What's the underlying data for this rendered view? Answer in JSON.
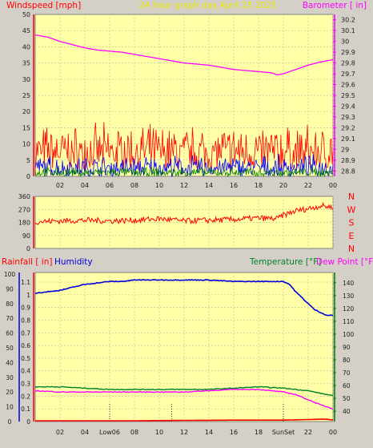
{
  "colors": {
    "background": "#d4d0c8",
    "plot_bg": "#ffffa8",
    "grid": "#ccc4a0",
    "axis": "#808080",
    "wind_speed": "#ff0000",
    "wind_gust": "#0000ff",
    "wind_avg": "#008000",
    "barometer": "#ff00ff",
    "direction": "#ff0000",
    "humidity": "#0000dd",
    "temperature": "#00802a",
    "dew_point": "#ff00ff",
    "rainfall": "#ff0000",
    "title": "#e8e800",
    "low_marker": "#404040"
  },
  "header": {
    "title": "24 hour graph day   April 25 2025"
  },
  "chart_data": [
    {
      "type": "line",
      "name": "wind-barometer",
      "left_axis_label": "Windspeed [mph]",
      "right_axis_label": "Barometer [ in]",
      "x_ticks": [
        "02",
        "04",
        "06",
        "08",
        "10",
        "12",
        "14",
        "16",
        "18",
        "20",
        "22",
        "00"
      ],
      "left_ticks": [
        "0",
        "5",
        "10",
        "15",
        "20",
        "25",
        "30",
        "35",
        "40",
        "45",
        "50"
      ],
      "left_ylim": [
        0,
        50
      ],
      "right_ticks": [
        "28.8",
        "28.9",
        "29",
        "29.1",
        "29.2",
        "29.3",
        "29.4",
        "29.5",
        "29.6",
        "29.7",
        "29.8",
        "29.9",
        "30",
        "30.1",
        "30.2"
      ],
      "right_ylim": [
        28.75,
        30.25
      ],
      "barometer": {
        "hours": [
          0,
          1,
          2,
          3,
          4,
          5,
          6,
          7,
          8,
          9,
          10,
          11,
          12,
          13,
          14,
          15,
          16,
          17,
          18,
          19,
          19.5,
          20,
          21,
          22,
          23,
          24
        ],
        "values": [
          30.06,
          30.04,
          30.0,
          29.97,
          29.94,
          29.92,
          29.91,
          29.9,
          29.88,
          29.86,
          29.84,
          29.82,
          29.8,
          29.79,
          29.78,
          29.76,
          29.74,
          29.73,
          29.72,
          29.71,
          29.69,
          29.7,
          29.74,
          29.78,
          29.81,
          29.83
        ]
      },
      "wind_speed_range": [
        2,
        17
      ],
      "wind_gust_range": [
        0,
        7
      ],
      "wind_avg_range": [
        0,
        3
      ]
    },
    {
      "type": "line",
      "name": "wind-direction",
      "left_ticks": [
        "0",
        "90",
        "180",
        "270",
        "360"
      ],
      "ylim": [
        0,
        360
      ],
      "compass_labels": [
        "N",
        "W",
        "S",
        "E",
        "N"
      ],
      "x_ticks": [
        "02",
        "04",
        "06",
        "08",
        "10",
        "12",
        "14",
        "16",
        "18",
        "20",
        "22",
        "00"
      ],
      "direction": {
        "hours": [
          0,
          2,
          4,
          6,
          8,
          10,
          12,
          14,
          16,
          18,
          19.5,
          20,
          21,
          22,
          23,
          24
        ],
        "values": [
          185,
          190,
          195,
          190,
          195,
          205,
          190,
          195,
          200,
          210,
          205,
          230,
          260,
          275,
          295,
          285
        ]
      }
    },
    {
      "type": "line",
      "name": "humidity-temperature",
      "labels": {
        "rainfall": "Rainfall [ in]",
        "humidity": "Humidity",
        "temperature": "Temperature [°F]",
        "dew_point": "Dew Point [°F]"
      },
      "left_ticks_humidity": [
        "0",
        "10",
        "20",
        "30",
        "40",
        "50",
        "60",
        "70",
        "80",
        "90",
        "100"
      ],
      "left_ticks_rain": [
        "0",
        "0.1",
        "0.2",
        "0.3",
        "0.4",
        "0.5",
        "0.6",
        "0.7",
        "0.8",
        "0.9",
        "1",
        "1.1"
      ],
      "right_ticks": [
        "40",
        "50",
        "60",
        "70",
        "80",
        "90",
        "100",
        "110",
        "120",
        "130",
        "140"
      ],
      "right_ylim": [
        32,
        148
      ],
      "x_ticks": [
        "02",
        "04",
        "Low06",
        "08",
        "10",
        "12",
        "14",
        "16",
        "18",
        "SunSet",
        "22",
        "00"
      ],
      "x_tick_hours": [
        2,
        4,
        6,
        8,
        10,
        12,
        14,
        16,
        18,
        20,
        22,
        24
      ],
      "marker_lines_hours": [
        6,
        11,
        20
      ],
      "humidity": {
        "hours": [
          0,
          1,
          2,
          3,
          4,
          5,
          6,
          7,
          8,
          9,
          10,
          12,
          14,
          16,
          18,
          20,
          20.5,
          21,
          21.5,
          22,
          22.5,
          23,
          23.5,
          24
        ],
        "values": [
          87,
          88,
          89,
          91,
          93,
          94,
          95,
          95,
          96,
          96,
          96,
          96,
          96,
          95,
          95,
          95,
          93,
          88,
          84,
          80,
          76,
          74,
          72,
          72
        ]
      },
      "temperature": {
        "hours": [
          0,
          2,
          4,
          6,
          8,
          10,
          12,
          14,
          16,
          18,
          20,
          21,
          22,
          23,
          24
        ],
        "values": [
          59,
          59,
          58,
          57,
          57,
          57,
          57,
          57,
          58,
          59,
          58,
          57,
          56,
          54,
          52
        ]
      },
      "dew_point": {
        "hours": [
          0,
          2,
          4,
          6,
          8,
          10,
          12,
          14,
          16,
          18,
          20,
          21,
          22,
          23,
          24
        ],
        "values": [
          56,
          55,
          55,
          55,
          55,
          55,
          55,
          56,
          57,
          57,
          55,
          53,
          49,
          45,
          42
        ]
      },
      "rainfall": {
        "hours": [
          0,
          8,
          12,
          16,
          20,
          23,
          23.5,
          24
        ],
        "values": [
          0,
          0,
          0.003,
          0.005,
          0.005,
          0.012,
          0.012,
          0.006
        ]
      }
    }
  ]
}
